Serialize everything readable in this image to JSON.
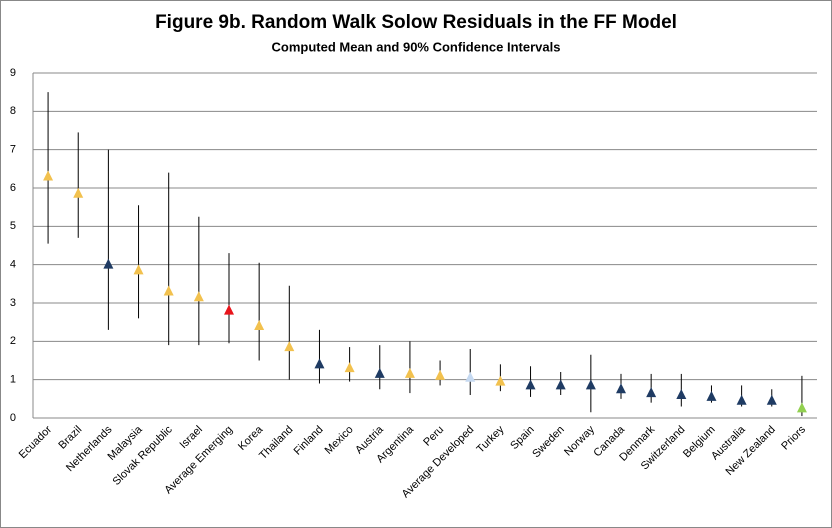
{
  "chart_data": {
    "type": "interval",
    "title": "Figure 9b. Random Walk Solow Residuals in the FF Model",
    "subtitle": "Computed Mean and 90% Confidence Intervals",
    "categories": [
      "Ecuador",
      "Brazil",
      "Netherlands",
      "Malaysia",
      "Slovak Republic",
      "Israel",
      "Average Emerging",
      "Korea",
      "Thailand",
      "Finland",
      "Mexico",
      "Austria",
      "Argentina",
      "Peru",
      "Average Developed",
      "Turkey",
      "Spain",
      "Sweden",
      "Norway",
      "Canada",
      "Denmark",
      "Switzerland",
      "Belgium",
      "Australia",
      "New Zealand",
      "Priors"
    ],
    "values": [
      6.3,
      5.85,
      4.0,
      3.85,
      3.3,
      3.15,
      2.8,
      2.4,
      1.85,
      1.4,
      1.3,
      1.15,
      1.15,
      1.1,
      1.05,
      0.95,
      0.85,
      0.85,
      0.85,
      0.75,
      0.65,
      0.6,
      0.55,
      0.45,
      0.45,
      0.25
    ],
    "lower": [
      4.55,
      4.7,
      2.3,
      2.6,
      1.9,
      1.9,
      1.95,
      1.5,
      1.0,
      0.9,
      0.95,
      0.75,
      0.65,
      0.85,
      0.6,
      0.7,
      0.55,
      0.6,
      0.15,
      0.5,
      0.4,
      0.3,
      0.4,
      0.3,
      0.3,
      0.05
    ],
    "upper": [
      8.5,
      7.45,
      7.0,
      5.55,
      6.4,
      5.25,
      4.3,
      4.05,
      3.45,
      2.3,
      1.85,
      1.9,
      2.0,
      1.5,
      1.8,
      1.4,
      1.35,
      1.2,
      1.65,
      1.15,
      1.15,
      1.15,
      0.85,
      0.85,
      0.75,
      1.1
    ],
    "colors": [
      "#f2c14e",
      "#f2c14e",
      "#1f3b63",
      "#f2c14e",
      "#f2c14e",
      "#f2c14e",
      "#e8141b",
      "#f2c14e",
      "#f2c14e",
      "#1f3b63",
      "#f2c14e",
      "#1f3b63",
      "#f2c14e",
      "#f2c14e",
      "#c5d9f1",
      "#f2c14e",
      "#1f3b63",
      "#1f3b63",
      "#1f3b63",
      "#1f3b63",
      "#1f3b63",
      "#1f3b63",
      "#1f3b63",
      "#1f3b63",
      "#1f3b63",
      "#92d050"
    ],
    "ylim": [
      0,
      9
    ],
    "yticks": [
      0,
      1,
      2,
      3,
      4,
      5,
      6,
      7,
      8,
      9
    ],
    "grid": true
  }
}
